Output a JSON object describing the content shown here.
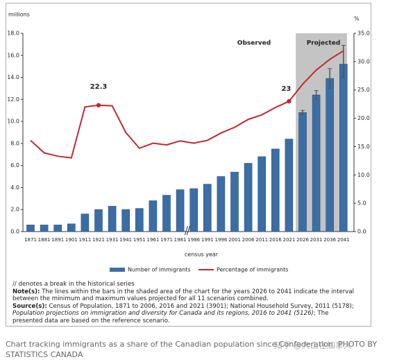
{
  "chart_data": {
    "type": "bar-line",
    "y_axis_label": "millions",
    "y2_axis_label": "%",
    "x_axis_label": "census year",
    "annotations": [
      "Observed",
      "Projected"
    ],
    "categories": [
      "1871",
      "1881",
      "1891",
      "1901",
      "1911",
      "1921",
      "1931",
      "1941",
      "1951",
      "1961",
      "1971",
      "1981",
      "1986",
      "1991",
      "1996",
      "2001",
      "2006",
      "2011",
      "2016",
      "2021",
      "2026",
      "2031",
      "2036",
      "2041"
    ],
    "series": [
      {
        "name": "Number of immigrants",
        "color": "#3c6ea6",
        "values": [
          0.6,
          0.6,
          0.6,
          0.7,
          1.6,
          2.0,
          2.3,
          2.0,
          2.1,
          2.8,
          3.3,
          3.8,
          3.9,
          4.3,
          5.0,
          5.4,
          6.2,
          6.8,
          7.5,
          8.4,
          10.8,
          12.4,
          13.9,
          15.2
        ],
        "error_low": [
          null,
          null,
          null,
          null,
          null,
          null,
          null,
          null,
          null,
          null,
          null,
          null,
          null,
          null,
          null,
          null,
          null,
          null,
          null,
          null,
          10.6,
          12.0,
          13.0,
          14.0
        ],
        "error_high": [
          null,
          null,
          null,
          null,
          null,
          null,
          null,
          null,
          null,
          null,
          null,
          null,
          null,
          null,
          null,
          null,
          null,
          null,
          null,
          null,
          11.0,
          12.8,
          14.8,
          16.9
        ]
      },
      {
        "name": "Percentage of immigrants",
        "color": "#c0282e",
        "axis": "y2",
        "values": [
          16.1,
          13.9,
          13.3,
          13.0,
          22.0,
          22.3,
          22.2,
          17.5,
          14.7,
          15.6,
          15.3,
          16.0,
          15.6,
          16.1,
          17.4,
          18.4,
          19.8,
          20.6,
          21.9,
          23.0,
          26.0,
          28.5,
          30.4,
          31.9
        ],
        "labeled": [
          5,
          19
        ]
      }
    ],
    "projected_from": "2026",
    "ylim": [
      0,
      18
    ],
    "yticks": [
      {
        "value": 0,
        "label": "0.0"
      },
      {
        "value": 2,
        "label": "2.0"
      },
      {
        "value": 4,
        "label": "4.0"
      },
      {
        "value": 6,
        "label": "6.0"
      },
      {
        "value": 8,
        "label": "8.0"
      },
      {
        "value": 10,
        "label": "10.0"
      },
      {
        "value": 12,
        "label": "12.0"
      },
      {
        "value": 14,
        "label": "14.0"
      },
      {
        "value": 16,
        "label": "16.0"
      },
      {
        "value": 18,
        "label": "18.0"
      }
    ],
    "y2lim": [
      0,
      35
    ],
    "y2ticks": [
      {
        "value": 0,
        "label": "0.0"
      },
      {
        "value": 5,
        "label": "5.0"
      },
      {
        "value": 10,
        "label": "10.0"
      },
      {
        "value": 15,
        "label": "15.0"
      },
      {
        "value": 20,
        "label": "20.0"
      },
      {
        "value": 25,
        "label": "25.0"
      },
      {
        "value": 30,
        "label": "30.0"
      },
      {
        "value": 35,
        "label": "35.0"
      }
    ],
    "grid": false
  },
  "notes": {
    "break_note": "// denotes a break in the historical series",
    "note_label": "Note(s):",
    "note_text": "The lines within the bars in the shaded area of the chart for the years 2026 to 2041 indicate the interval between the minimum and maximum values projected for all 11 scenarios combined.",
    "source_label": "Source(s):",
    "source_text": "Census of Population, 1871 to 2006, 2016 and 2021 (3901); National Household Survey, 2011 (5178);",
    "source_italic": "Population projections on immigration and diversity for Canada and its regions, 2016 to 2041 (5126)",
    "source_end": "; The presented data are based on the reference scenario."
  },
  "caption": "Chart tracking immigrants as a share of the Canadian population since Confederation. PHOTO BY STATISTICS CANADA",
  "watermark": "知乎 @大山在加拿大"
}
